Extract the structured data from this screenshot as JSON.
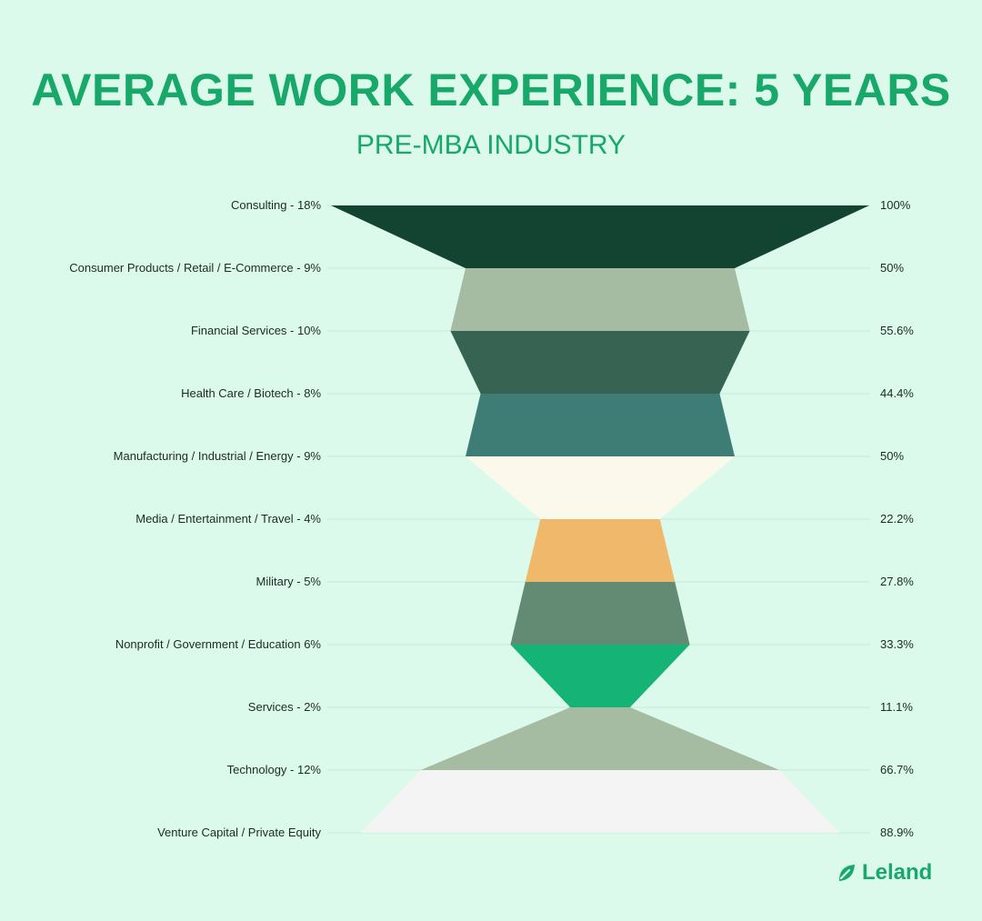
{
  "title": "AVERAGE WORK EXPERIENCE: 5 YEARS",
  "subtitle": "PRE-MBA INDUSTRY",
  "brand": {
    "name": "Leland",
    "icon": "leaf-icon",
    "color": "#17a86a"
  },
  "colors": {
    "background": "#dcfaec",
    "accent": "#17a86a",
    "gridline": "#c4ead6",
    "text": "#1b2b24"
  },
  "chart_data": {
    "type": "funnel",
    "title": "AVERAGE WORK EXPERIENCE: 5 YEARS",
    "subtitle": "PRE-MBA INDUSTRY",
    "max_value": 100,
    "stages": [
      {
        "label": "Consulting - 18%",
        "value": 100,
        "value_label": "100%",
        "color": "#134432"
      },
      {
        "label": "Consumer Products / Retail / E-Commerce - 9%",
        "value": 50,
        "value_label": "50%",
        "color": "#a6bca2"
      },
      {
        "label": "Financial Services - 10%",
        "value": 55.6,
        "value_label": "55.6%",
        "color": "#376452"
      },
      {
        "label": "Health Care / Biotech - 8%",
        "value": 44.4,
        "value_label": "44.4%",
        "color": "#3e7c76"
      },
      {
        "label": "Manufacturing / Industrial / Energy - 9%",
        "value": 50,
        "value_label": "50%",
        "color": "#fbf9ec"
      },
      {
        "label": "Media / Entertainment / Travel - 4%",
        "value": 22.2,
        "value_label": "22.2%",
        "color": "#efb86a"
      },
      {
        "label": "Military - 5%",
        "value": 27.8,
        "value_label": "27.8%",
        "color": "#638a73"
      },
      {
        "label": "Nonprofit / Government / Education 6%",
        "value": 33.3,
        "value_label": "33.3%",
        "color": "#16b377"
      },
      {
        "label": "Services - 2%",
        "value": 11.1,
        "value_label": "11.1%",
        "color": "#a6bca2"
      },
      {
        "label": "Technology - 12%",
        "value": 66.7,
        "value_label": "66.7%",
        "color": "#f4f4f4"
      },
      {
        "label": "Venture Capital / Private Equity",
        "value": 88.9,
        "value_label": "88.9%",
        "color": null
      }
    ]
  }
}
